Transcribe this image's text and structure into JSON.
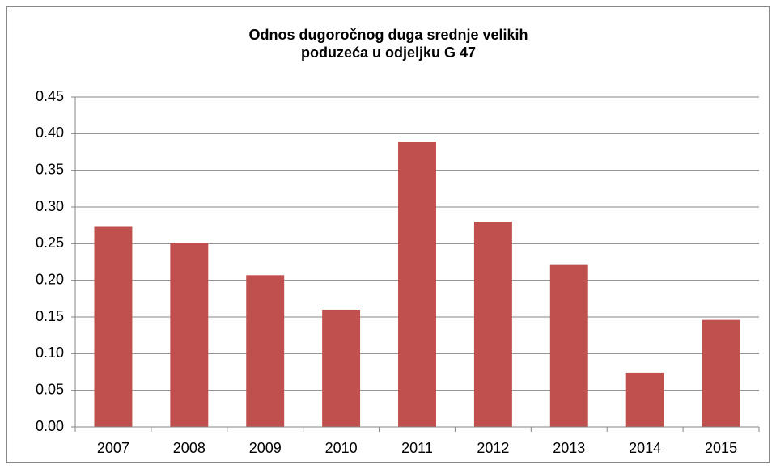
{
  "chart_data": {
    "type": "bar",
    "title": "Odnos dugoročnog duga srednje velikih poduzeća u odjeljku G 47",
    "categories": [
      "2007",
      "2008",
      "2009",
      "2010",
      "2011",
      "2012",
      "2013",
      "2014",
      "2015"
    ],
    "values": [
      0.273,
      0.251,
      0.207,
      0.16,
      0.389,
      0.28,
      0.221,
      0.074,
      0.146
    ],
    "color": "#c0504d",
    "ylim": [
      0,
      0.45
    ],
    "yticks": [
      {
        "value": 0,
        "label": "0.00"
      },
      {
        "value": 0.05,
        "label": "0.05"
      },
      {
        "value": 0.1,
        "label": "0.10"
      },
      {
        "value": 0.15,
        "label": "0.15"
      },
      {
        "value": 0.2,
        "label": "0.20"
      },
      {
        "value": 0.25,
        "label": "0.25"
      },
      {
        "value": 0.3,
        "label": "0.30"
      },
      {
        "value": 0.35,
        "label": "0.35"
      },
      {
        "value": 0.4,
        "label": "0.40"
      },
      {
        "value": 0.45,
        "label": "0.45"
      }
    ],
    "grid": true
  }
}
